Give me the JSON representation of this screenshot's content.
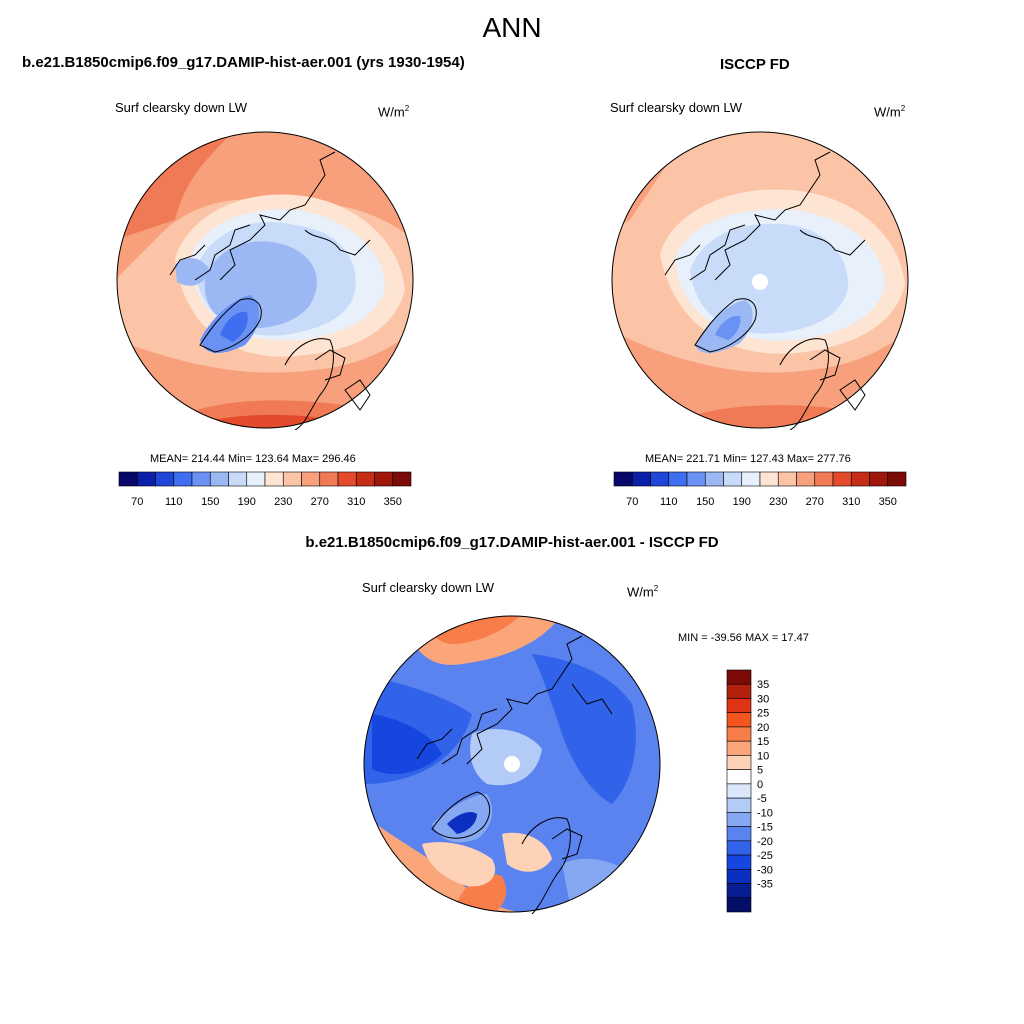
{
  "title": "ANN",
  "panel_left": {
    "heading": "b.e21.B1850cmip6.f09_g17.DAMIP-hist-aer.001 (yrs 1930-1954)",
    "variable": "Surf clearsky down LW",
    "units_base": "W/m",
    "units_exp": "2",
    "stats": "MEAN= 214.44  Min= 123.64  Max= 296.46"
  },
  "panel_right": {
    "heading": "ISCCP FD",
    "variable": "Surf clearsky down LW",
    "units_base": "W/m",
    "units_exp": "2",
    "stats": "MEAN= 221.71  Min= 127.43  Max= 277.76"
  },
  "panel_diff": {
    "heading": "b.e21.B1850cmip6.f09_g17.DAMIP-hist-aer.001 - ISCCP FD",
    "variable": "Surf clearsky down LW",
    "units_base": "W/m",
    "units_exp": "2",
    "stats": "MIN = -39.56 MAX =  17.47"
  },
  "colorbar_abs": {
    "colors": [
      "#08086b",
      "#0c1fa8",
      "#1f45d9",
      "#3f6ef0",
      "#6a92f5",
      "#9bb8f5",
      "#c8dcfa",
      "#e7f0fb",
      "#fde4d3",
      "#fbc4a6",
      "#f7a07b",
      "#f07a55",
      "#e44b2c",
      "#c72c17",
      "#a0170b",
      "#7c0a06"
    ],
    "labels": [
      "70",
      "110",
      "150",
      "190",
      "230",
      "270",
      "310",
      "350"
    ]
  },
  "colorbar_diff": {
    "colors": [
      "#7c0a06",
      "#b3200d",
      "#e03414",
      "#f5561f",
      "#f77e4a",
      "#fba57a",
      "#fdd2b6",
      "#ffffff",
      "#dbe7fb",
      "#b3cbf7",
      "#86a8f3",
      "#5a83ef",
      "#3162ea",
      "#1546e0",
      "#0b2fc1",
      "#061d94",
      "#030f66"
    ],
    "labels": [
      "35",
      "30",
      "25",
      "20",
      "15",
      "10",
      "5",
      "0",
      "-5",
      "-10",
      "-15",
      "-20",
      "-25",
      "-30",
      "-35"
    ]
  }
}
